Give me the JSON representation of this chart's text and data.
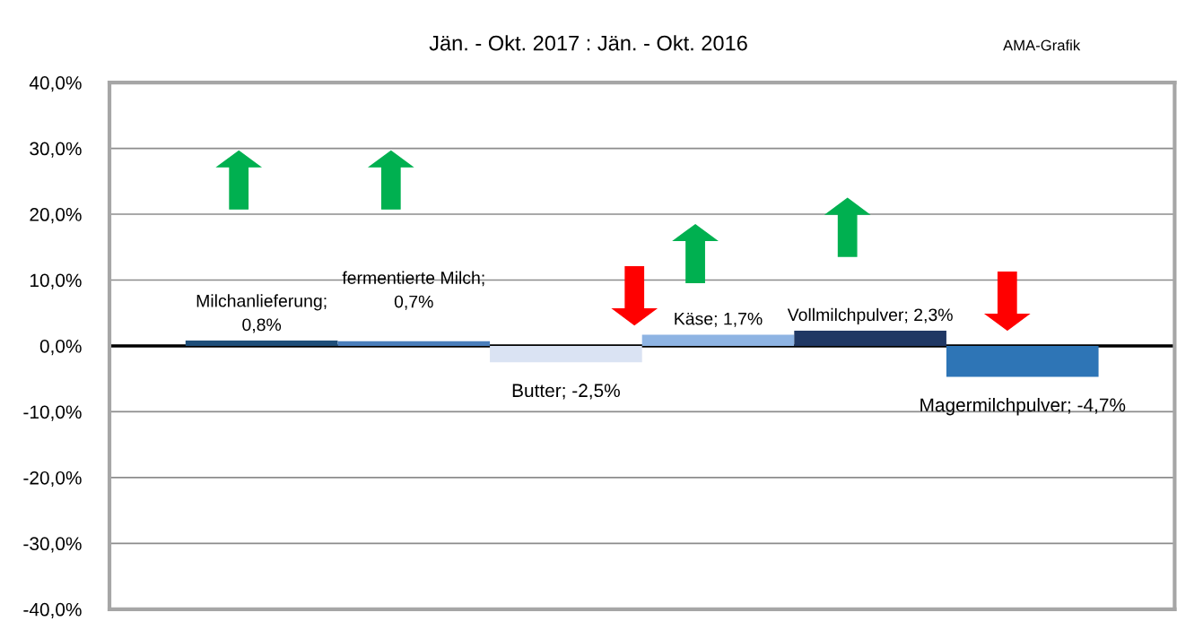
{
  "chart_data": {
    "type": "bar",
    "title": "Jän. - Okt. 2017 : Jän. - Okt. 2016",
    "annotations": [
      "AMA-Grafik"
    ],
    "categories": [
      null,
      null,
      null,
      null,
      null,
      null
    ],
    "values": [
      0.8,
      0.7,
      -2.5,
      1.7,
      2.3,
      -4.7
    ],
    "colors": [
      "#1f4e79",
      "#4a7ebb",
      "#dae3f3",
      "#8eb4e3",
      "#203864",
      "#2e75b6"
    ],
    "value_labels": [
      "Milchanlieferung;\n0,8%",
      "fermentierte Milch;\n0,7%",
      "Butter; -2,5%",
      "Käse; 1,7%",
      "Vollmilchpulver; 2,3%",
      "Magermilchpulver; -4,7%"
    ],
    "ylim": [
      -40,
      40
    ],
    "yticks": [
      {
        "value": -40,
        "label": "-40,0%"
      },
      {
        "value": -30,
        "label": "-30,0%"
      },
      {
        "value": -20,
        "label": "-20,0%"
      },
      {
        "value": -10,
        "label": "-10,0%"
      },
      {
        "value": 0,
        "label": "0,0%"
      },
      {
        "value": 10,
        "label": "10,0%"
      },
      {
        "value": 20,
        "label": "20,0%"
      },
      {
        "value": 30,
        "label": "30,0%"
      },
      {
        "value": 40,
        "label": "40,0%"
      }
    ],
    "grid": "y"
  }
}
